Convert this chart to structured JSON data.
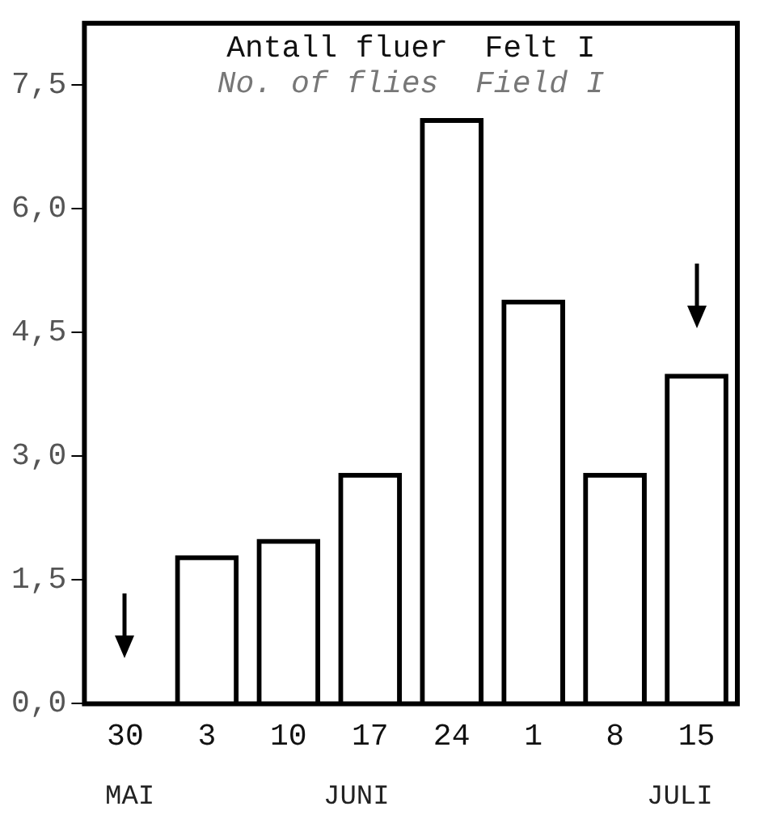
{
  "chart_data": {
    "type": "bar",
    "title": "Antall fluer  Felt I",
    "subtitle": "No. of flies  Field I",
    "categories": [
      "30",
      "3",
      "10",
      "17",
      "24",
      "1",
      "8",
      "15"
    ],
    "values": [
      0,
      1.8,
      2.0,
      2.8,
      7.1,
      4.9,
      2.8,
      4.0
    ],
    "color": "#000000",
    "ylim": [
      0,
      8.25
    ],
    "yticks": [
      {
        "value": 0,
        "label": "0,0"
      },
      {
        "value": 1.5,
        "label": "1,5"
      },
      {
        "value": 3,
        "label": "3,0"
      },
      {
        "value": 4.5,
        "label": "4,5"
      },
      {
        "value": 6,
        "label": "6,0"
      },
      {
        "value": 7.5,
        "label": "7,5"
      }
    ],
    "grid": false,
    "legend": false,
    "annotations": [
      "MAI",
      "JUNI",
      "JULI"
    ]
  }
}
